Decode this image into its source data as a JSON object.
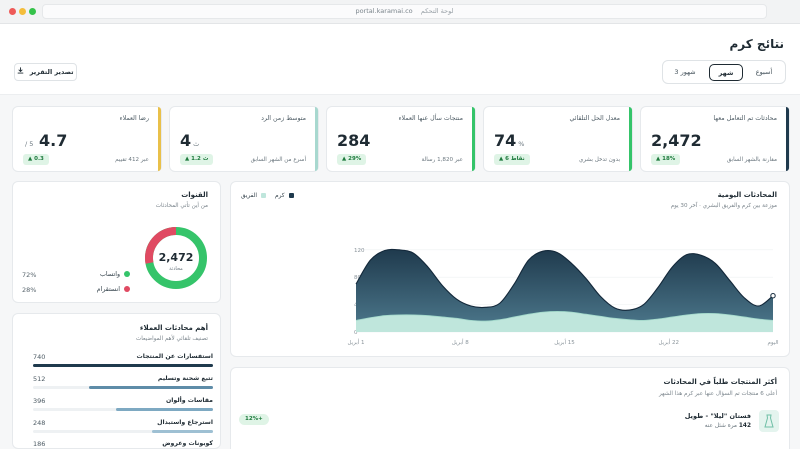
{
  "browser": {
    "url": "portal.karamai.co",
    "breadcrumb": "لوحة التحكم"
  },
  "header": {
    "title": "نتائج كرم",
    "period_options": [
      "أسبوع",
      "شهر",
      "3 شهور"
    ],
    "period_selected": "شهر",
    "export_label": "تصدير التقرير"
  },
  "kpis": [
    {
      "label": "محادثات تم التعامل معها",
      "value": "2,472",
      "unit": "",
      "sub": "مقارنة بالشهر السابق",
      "badge": "▲ 18%",
      "accent": "#1f3a4d"
    },
    {
      "label": "معدل الحل التلقائي",
      "value": "74",
      "unit": "%",
      "sub": "بدون تدخل بشري",
      "badge": "▲ 6 نقاط",
      "accent": "#35c46a"
    },
    {
      "label": "منتجات سأل عنها العملاء",
      "value": "284",
      "unit": "",
      "sub": "عبر 1,820 رسالة",
      "badge": "▲ 29%",
      "accent": "#35c46a"
    },
    {
      "label": "متوسط زمن الرد",
      "value": "4",
      "unit": "ث",
      "sub": "أسرع من الشهر السابق",
      "badge": "▲ 1.2 ث",
      "accent": "#a8d8cf"
    },
    {
      "label": "رضا العملاء",
      "value": "4.7",
      "unit": "/ 5",
      "sub": "عبر 412 تقييم",
      "badge": "▲ 0.3",
      "accent": "#e9c04a"
    }
  ],
  "channels": {
    "title": "القنوات",
    "subtitle": "من أين تأتي المحادثات",
    "total": "2,472",
    "total_label": "محادثة",
    "items": [
      {
        "name": "واتساب",
        "percent": "72%",
        "share": 0.72,
        "color": "#35c46a"
      },
      {
        "name": "انستقرام",
        "percent": "28%",
        "share": 0.28,
        "color": "#e04a62"
      }
    ]
  },
  "daily": {
    "title": "المحادثات اليومية",
    "subtitle": "موزعة بين كرم والفريق البشري · آخر 30 يوم",
    "legend": [
      {
        "name": "كرم",
        "color": "#1f3a4d"
      },
      {
        "name": "الفريق",
        "color": "#bfe6dc"
      }
    ]
  },
  "chart_data": {
    "type": "area",
    "x_tick_labels": [
      "1 أبريل",
      "8 أبريل",
      "15 أبريل",
      "22 أبريل",
      "اليوم"
    ],
    "y_ticks": [
      0,
      40,
      80,
      120
    ],
    "ylim": [
      0,
      130
    ],
    "series": [
      {
        "name": "كرم",
        "color": "#1f3a4d",
        "values": [
          70,
          105,
          119,
          120,
          115,
          95,
          68,
          48,
          38,
          36,
          42,
          70,
          105,
          118,
          116,
          100,
          78,
          52,
          35,
          32,
          40,
          65,
          95,
          113,
          112,
          100,
          75,
          50,
          38,
          53
        ]
      },
      {
        "name": "الفريق",
        "color": "#bfe6dc",
        "values": [
          17,
          21,
          24,
          25,
          25,
          24,
          22,
          20,
          17,
          16,
          18,
          22,
          26,
          29,
          30,
          29,
          26,
          23,
          20,
          18,
          17,
          19,
          22,
          25,
          27,
          27,
          25,
          22,
          19,
          17
        ]
      }
    ]
  },
  "topics": {
    "title": "أهم محادثات العملاء",
    "subtitle": "تصنيف تلقائي لأهم المواضيعات",
    "items": [
      {
        "label": "استفسارات عن المنتجات",
        "value": "740",
        "ratio": 1.0,
        "color": "#1f3a4d"
      },
      {
        "label": "تتبع شحنة وتسليم",
        "value": "512",
        "ratio": 0.69,
        "color": "#5e8ca8"
      },
      {
        "label": "مقاسات وألوان",
        "value": "396",
        "ratio": 0.54,
        "color": "#7ea9c2"
      },
      {
        "label": "استرجاع واستبدال",
        "value": "248",
        "ratio": 0.34,
        "color": "#9ec0d3"
      },
      {
        "label": "كوبونات وعروض",
        "value": "186",
        "ratio": 0.25,
        "color": "#b7d1df"
      }
    ]
  },
  "products": {
    "title": "أكثر المنتجات طلباً في المحادثات",
    "subtitle": "أعلى 6 منتجات تم السؤال عنها عبر كرم هذا الشهر",
    "first": {
      "name": "فستان \"ليلا\" - طويل",
      "count": "142",
      "count_suffix": "مرة شئل عنه",
      "badge": "12%+"
    }
  }
}
